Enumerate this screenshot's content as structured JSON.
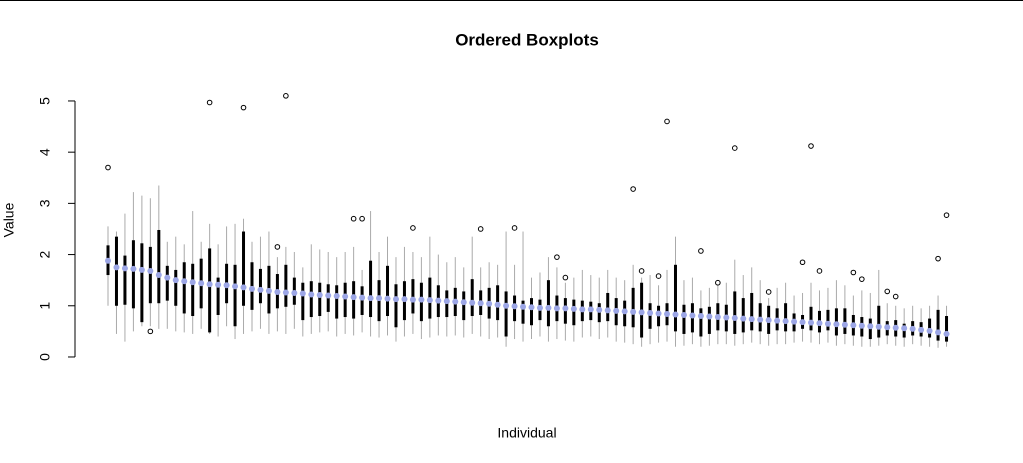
{
  "chart_data": {
    "type": "boxplot",
    "title": "Ordered Boxplots",
    "x_label": "Individual",
    "y_label": "Value",
    "ylim": [
      -0.02,
      5.3
    ],
    "yticks": [
      0,
      1,
      2,
      3,
      4,
      5
    ],
    "box_color": "#000000",
    "whisker_color": "#aaaaaa",
    "median_color": "#9ca6e6",
    "outlier_color": "#000000",
    "categories": [
      null,
      null,
      null,
      null,
      null,
      null,
      null,
      null,
      null,
      null,
      null,
      null,
      null,
      null,
      null,
      null,
      null,
      null,
      null,
      null,
      null,
      null,
      null,
      null,
      null,
      null,
      null,
      null,
      null,
      null,
      null,
      null,
      null,
      null,
      null,
      null,
      null,
      null,
      null,
      null,
      null,
      null,
      null,
      null,
      null,
      null,
      null,
      null,
      null,
      null,
      null,
      null,
      null,
      null,
      null,
      null,
      null,
      null,
      null,
      null,
      null,
      null,
      null,
      null,
      null,
      null,
      null,
      null,
      null,
      null,
      null,
      null,
      null,
      null,
      null,
      null,
      null,
      null,
      null,
      null,
      null,
      null,
      null,
      null,
      null,
      null,
      null,
      null,
      null,
      null,
      null,
      null,
      null,
      null,
      null,
      null,
      null,
      null,
      null,
      null
    ],
    "median": [
      1.88,
      1.75,
      1.73,
      1.72,
      1.7,
      1.68,
      1.6,
      1.55,
      1.5,
      1.48,
      1.46,
      1.44,
      1.42,
      1.41,
      1.4,
      1.38,
      1.36,
      1.33,
      1.31,
      1.29,
      1.27,
      1.26,
      1.25,
      1.24,
      1.22,
      1.21,
      1.2,
      1.19,
      1.18,
      1.17,
      1.16,
      1.15,
      1.15,
      1.14,
      1.13,
      1.13,
      1.12,
      1.12,
      1.11,
      1.1,
      1.09,
      1.08,
      1.07,
      1.06,
      1.05,
      1.04,
      1.02,
      1.0,
      0.99,
      0.98,
      0.97,
      0.96,
      0.96,
      0.95,
      0.95,
      0.94,
      0.93,
      0.93,
      0.92,
      0.91,
      0.9,
      0.89,
      0.88,
      0.87,
      0.86,
      0.85,
      0.84,
      0.83,
      0.82,
      0.81,
      0.8,
      0.79,
      0.78,
      0.77,
      0.76,
      0.75,
      0.74,
      0.73,
      0.72,
      0.71,
      0.7,
      0.69,
      0.68,
      0.67,
      0.66,
      0.65,
      0.64,
      0.63,
      0.62,
      0.61,
      0.6,
      0.59,
      0.58,
      0.57,
      0.56,
      0.55,
      0.53,
      0.51,
      0.48,
      0.45
    ],
    "q1": [
      1.6,
      1.0,
      1.02,
      0.95,
      0.68,
      1.05,
      1.05,
      1.1,
      1.0,
      0.85,
      0.8,
      0.95,
      0.48,
      0.82,
      1.05,
      0.6,
      1.0,
      0.92,
      1.05,
      0.85,
      0.95,
      0.98,
      1.02,
      0.72,
      0.78,
      0.8,
      0.88,
      0.75,
      0.78,
      0.75,
      0.82,
      0.78,
      0.7,
      0.8,
      0.58,
      0.72,
      0.85,
      0.7,
      0.75,
      0.78,
      0.78,
      0.8,
      0.72,
      0.8,
      0.82,
      0.75,
      0.72,
      0.4,
      0.7,
      0.65,
      0.62,
      0.72,
      0.6,
      0.7,
      0.65,
      0.62,
      0.7,
      0.72,
      0.68,
      0.7,
      0.62,
      0.6,
      0.58,
      0.38,
      0.55,
      0.6,
      0.62,
      0.5,
      0.45,
      0.48,
      0.4,
      0.45,
      0.52,
      0.5,
      0.45,
      0.48,
      0.52,
      0.5,
      0.45,
      0.52,
      0.5,
      0.5,
      0.55,
      0.52,
      0.48,
      0.52,
      0.42,
      0.45,
      0.42,
      0.4,
      0.35,
      0.38,
      0.42,
      0.4,
      0.38,
      0.42,
      0.4,
      0.38,
      0.32,
      0.3
    ],
    "q3": [
      2.18,
      2.35,
      1.98,
      2.28,
      2.22,
      2.15,
      2.48,
      1.78,
      1.7,
      1.85,
      1.82,
      1.92,
      2.12,
      1.55,
      1.82,
      1.8,
      2.45,
      1.85,
      1.72,
      1.78,
      1.62,
      1.8,
      1.55,
      1.45,
      1.48,
      1.45,
      1.42,
      1.4,
      1.45,
      1.48,
      1.38,
      1.88,
      1.5,
      1.78,
      1.42,
      1.48,
      1.52,
      1.45,
      1.55,
      1.4,
      1.3,
      1.35,
      1.28,
      1.52,
      1.3,
      1.35,
      1.4,
      1.28,
      1.2,
      1.1,
      1.15,
      1.12,
      1.5,
      1.2,
      1.15,
      1.12,
      1.1,
      1.08,
      1.05,
      1.25,
      1.15,
      1.1,
      1.35,
      1.45,
      1.05,
      1.0,
      1.05,
      1.8,
      1.02,
      1.05,
      0.95,
      0.98,
      1.05,
      1.02,
      1.28,
      1.15,
      1.25,
      1.05,
      1.0,
      0.95,
      1.05,
      0.85,
      0.82,
      0.98,
      0.9,
      0.92,
      0.95,
      0.95,
      0.82,
      0.78,
      0.75,
      1.0,
      0.7,
      0.72,
      0.65,
      0.7,
      0.68,
      0.75,
      0.92,
      0.8
    ],
    "whisker_low": [
      1.0,
      0.45,
      0.3,
      0.5,
      0.6,
      0.6,
      0.55,
      0.55,
      0.5,
      0.48,
      0.45,
      0.55,
      0.45,
      0.4,
      0.6,
      0.35,
      0.45,
      0.5,
      0.55,
      0.45,
      0.5,
      0.45,
      0.55,
      0.4,
      0.45,
      0.48,
      0.5,
      0.4,
      0.45,
      0.42,
      0.48,
      0.4,
      0.38,
      0.42,
      0.3,
      0.4,
      0.45,
      0.35,
      0.38,
      0.42,
      0.4,
      0.42,
      0.38,
      0.45,
      0.4,
      0.35,
      0.38,
      0.2,
      0.35,
      0.3,
      0.35,
      0.4,
      0.3,
      0.35,
      0.32,
      0.3,
      0.38,
      0.4,
      0.35,
      0.38,
      0.3,
      0.28,
      0.25,
      0.2,
      0.25,
      0.28,
      0.3,
      0.2,
      0.22,
      0.25,
      0.2,
      0.22,
      0.25,
      0.25,
      0.22,
      0.25,
      0.28,
      0.25,
      0.22,
      0.25,
      0.25,
      0.28,
      0.3,
      0.28,
      0.25,
      0.28,
      0.22,
      0.25,
      0.22,
      0.2,
      0.2,
      0.22,
      0.25,
      0.22,
      0.2,
      0.25,
      0.22,
      0.2,
      0.18,
      0.2
    ],
    "whisker_high": [
      2.55,
      2.45,
      2.8,
      3.22,
      3.15,
      3.1,
      3.35,
      2.25,
      2.35,
      2.2,
      2.85,
      2.25,
      2.6,
      2.2,
      2.55,
      2.6,
      2.7,
      2.25,
      2.35,
      2.45,
      1.95,
      2.15,
      2.05,
      1.75,
      2.2,
      2.1,
      2.05,
      1.95,
      2.05,
      2.15,
      1.7,
      2.85,
      2.05,
      2.35,
      1.95,
      2.15,
      2.05,
      1.95,
      2.35,
      2.0,
      1.85,
      1.95,
      1.75,
      2.35,
      1.75,
      1.85,
      1.8,
      2.45,
      1.8,
      2.45,
      1.55,
      1.65,
      1.95,
      1.75,
      1.45,
      1.55,
      1.7,
      1.6,
      1.55,
      1.7,
      1.55,
      1.5,
      1.8,
      1.55,
      1.6,
      1.4,
      1.7,
      2.35,
      1.5,
      1.55,
      1.3,
      1.35,
      1.4,
      1.45,
      1.9,
      1.6,
      1.75,
      1.5,
      1.15,
      1.35,
      1.45,
      1.2,
      1.25,
      1.45,
      1.3,
      1.35,
      1.5,
      1.4,
      1.2,
      1.3,
      1.25,
      1.7,
      1.05,
      1.0,
      0.95,
      1.0,
      0.95,
      1.0,
      1.2,
      1.0
    ],
    "outliers": [
      [
        3.7
      ],
      [],
      [],
      [],
      [],
      [
        0.5
      ],
      [],
      [],
      [],
      [],
      [],
      [],
      [
        4.97
      ],
      [],
      [],
      [],
      [
        4.87
      ],
      [],
      [],
      [],
      [
        2.15
      ],
      [
        5.1
      ],
      [],
      [],
      [],
      [],
      [],
      [],
      [],
      [
        2.7
      ],
      [
        2.7
      ],
      [],
      [],
      [],
      [],
      [],
      [
        2.52
      ],
      [],
      [],
      [],
      [],
      [],
      [],
      [],
      [
        2.5
      ],
      [],
      [],
      [],
      [
        2.52
      ],
      [],
      [],
      [],
      [],
      [
        1.95
      ],
      [
        1.55
      ],
      [],
      [],
      [],
      [],
      [],
      [],
      [],
      [
        3.28
      ],
      [
        1.68
      ],
      [],
      [
        1.58
      ],
      [
        4.6
      ],
      [],
      [],
      [],
      [
        2.07
      ],
      [],
      [
        1.45
      ],
      [],
      [
        4.08
      ],
      [],
      [],
      [],
      [
        1.27
      ],
      [],
      [],
      [],
      [
        1.85
      ],
      [
        4.12
      ],
      [
        1.68
      ],
      [],
      [],
      [],
      [
        1.65
      ],
      [
        1.52
      ],
      [],
      [],
      [
        1.28
      ],
      [
        1.18
      ],
      [],
      [],
      [],
      [],
      [
        1.92
      ],
      [
        2.77
      ]
    ]
  }
}
